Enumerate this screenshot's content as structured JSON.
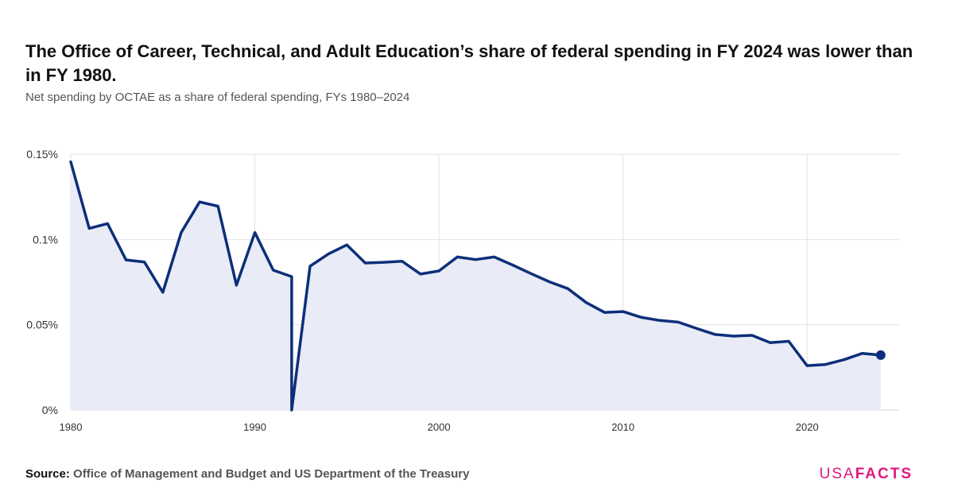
{
  "title": "The Office of Career, Technical, and Adult Education’s share of federal spending in FY 2024 was lower than in FY 1980.",
  "subtitle": "Net spending by OCTAE as a share of federal spending, FYs 1980–2024",
  "source": {
    "label": "Source:",
    "text": "Office of Management and Budget and US Department of the Treasury"
  },
  "logo": {
    "part1": "USA",
    "part2": "FACTS"
  },
  "colors": {
    "line": "#0d2f7a",
    "area": "#e9ecf6",
    "grid": "#e3e3e3",
    "logo": "#e2177e"
  },
  "chart_data": {
    "type": "line",
    "title": "",
    "xlabel": "",
    "ylabel": "",
    "xlim": [
      1980,
      2025
    ],
    "ylim": [
      0,
      0.15
    ],
    "yticks": [
      0,
      0.05,
      0.1,
      0.15
    ],
    "ytick_labels": [
      "0%",
      "0.05%",
      "0.1%",
      "0.15%"
    ],
    "xticks": [
      1980,
      1990,
      2000,
      2010,
      2020
    ],
    "xtick_labels": [
      "1980",
      "1990",
      "2000",
      "2010",
      "2020"
    ],
    "grid": true,
    "area_fill": true,
    "end_marker": true,
    "series": [
      {
        "x": [
          1980,
          1981,
          1982,
          1983,
          1984,
          1985,
          1986,
          1987,
          1988,
          1989,
          1990,
          1991,
          1992,
          1992,
          1993,
          1994,
          1995,
          1996,
          1997,
          1998,
          1999,
          2000,
          2001,
          2002,
          2003,
          2004,
          2005,
          2006,
          2007,
          2008,
          2009,
          2010,
          2011,
          2012,
          2013,
          2014,
          2015,
          2016,
          2017,
          2018,
          2019,
          2020,
          2021,
          2022,
          2023,
          2024
        ],
        "values": [
          0.1455,
          0.1065,
          0.1093,
          0.088,
          0.0868,
          0.069,
          0.104,
          0.122,
          0.1195,
          0.0732,
          0.104,
          0.082,
          0.0782,
          0.0,
          0.0843,
          0.0915,
          0.0968,
          0.0862,
          0.0866,
          0.0872,
          0.0797,
          0.0815,
          0.0897,
          0.0882,
          0.0897,
          0.085,
          0.08,
          0.0752,
          0.0712,
          0.063,
          0.0572,
          0.0577,
          0.0543,
          0.0525,
          0.0515,
          0.0478,
          0.0443,
          0.0433,
          0.0438,
          0.0395,
          0.0403,
          0.026,
          0.0267,
          0.0295,
          0.0332,
          0.0322
        ]
      }
    ]
  }
}
